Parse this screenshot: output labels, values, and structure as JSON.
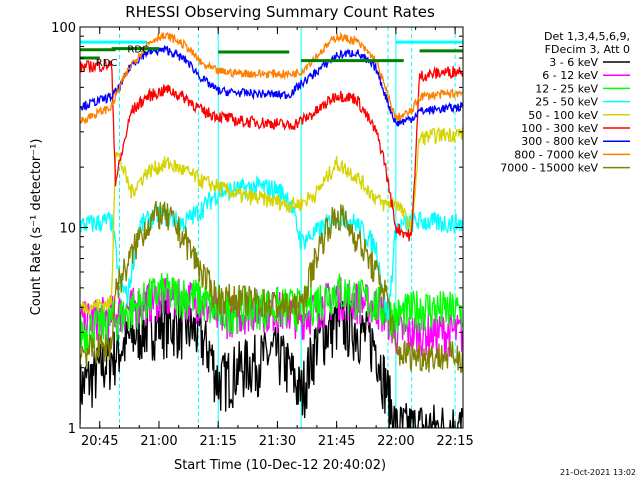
{
  "chart_data": {
    "type": "line",
    "title": "RHESSI Observing Summary Count Rates",
    "xlabel": "Start Time (10-Dec-12 20:40:02)",
    "ylabel": "Count Rate (s⁻¹ detector⁻¹)",
    "yscale": "log",
    "ylim": [
      1,
      100
    ],
    "xlim_minutes": [
      0,
      97
    ],
    "x_ticks": [
      {
        "label": "20:45",
        "t": 5
      },
      {
        "label": "21:00",
        "t": 20
      },
      {
        "label": "21:15",
        "t": 35
      },
      {
        "label": "21:30",
        "t": 50
      },
      {
        "label": "21:45",
        "t": 65
      },
      {
        "label": "22:00",
        "t": 80
      },
      {
        "label": "22:15",
        "t": 95
      }
    ],
    "y_ticks": [
      {
        "label": "1",
        "v": 1
      },
      {
        "label": "10",
        "v": 10
      },
      {
        "label": "100",
        "v": 100
      }
    ],
    "legend_header": [
      "Det 1,3,4,5,6,9,",
      "FDecim 3, Att 0"
    ],
    "legend_position": "right",
    "timestamp": "21-Oct-2021 13:02",
    "annotations": [
      {
        "text": "RDC",
        "t": 12,
        "v": 78
      },
      {
        "text": "RDC",
        "t": 4,
        "v": 67
      }
    ],
    "series": [
      {
        "name": "3 - 6 keV",
        "color": "#000000",
        "points": [
          [
            0,
            1.6
          ],
          [
            10,
            2.5
          ],
          [
            15,
            3.1
          ],
          [
            20,
            3.4
          ],
          [
            25,
            3.3
          ],
          [
            30,
            3.0
          ],
          [
            33,
            2.4
          ],
          [
            35,
            1.7
          ],
          [
            40,
            2.0
          ],
          [
            45,
            2.2
          ],
          [
            50,
            2.4
          ],
          [
            53,
            2.0
          ],
          [
            56,
            1.5
          ],
          [
            60,
            2.8
          ],
          [
            65,
            3.4
          ],
          [
            70,
            3.2
          ],
          [
            75,
            2.6
          ],
          [
            78,
            1.5
          ],
          [
            80,
            1.0
          ],
          [
            97,
            1.0
          ]
        ]
      },
      {
        "name": "6 - 12 keV",
        "color": "#ff00ff",
        "points": [
          [
            0,
            3.4
          ],
          [
            10,
            3.8
          ],
          [
            20,
            4.5
          ],
          [
            30,
            4.4
          ],
          [
            35,
            3.6
          ],
          [
            45,
            4.0
          ],
          [
            53,
            3.8
          ],
          [
            56,
            3.6
          ],
          [
            65,
            4.6
          ],
          [
            75,
            4.1
          ],
          [
            78,
            3.6
          ],
          [
            80,
            3.0
          ],
          [
            97,
            3.0
          ]
        ]
      },
      {
        "name": "12 - 25 keV",
        "color": "#00ff00",
        "points": [
          [
            0,
            3.0
          ],
          [
            10,
            3.6
          ],
          [
            20,
            4.8
          ],
          [
            30,
            4.5
          ],
          [
            35,
            3.8
          ],
          [
            45,
            4.1
          ],
          [
            56,
            4.0
          ],
          [
            65,
            4.9
          ],
          [
            75,
            4.2
          ],
          [
            80,
            3.6
          ],
          [
            86,
            4.0
          ],
          [
            97,
            3.8
          ]
        ]
      },
      {
        "name": "25 - 50 keV",
        "color": "#00ffff",
        "points": [
          [
            0,
            10.3
          ],
          [
            5,
            10.6
          ],
          [
            8,
            10.8
          ],
          [
            10,
            5.5
          ],
          [
            12,
            4.5
          ],
          [
            15,
            10.2
          ],
          [
            20,
            11.8
          ],
          [
            26,
            10.5
          ],
          [
            30,
            12.0
          ],
          [
            35,
            15.0
          ],
          [
            45,
            16.0
          ],
          [
            50,
            15.5
          ],
          [
            53,
            14.0
          ],
          [
            56,
            8.5
          ],
          [
            60,
            9.5
          ],
          [
            65,
            11.5
          ],
          [
            70,
            10.5
          ],
          [
            75,
            8.0
          ],
          [
            78,
            3.5
          ],
          [
            80,
            10.0
          ],
          [
            85,
            10.8
          ],
          [
            90,
            10.6
          ],
          [
            97,
            10.5
          ]
        ]
      },
      {
        "name": "50 - 100 keV",
        "color": "#d4d400",
        "points": [
          [
            0,
            4.0
          ],
          [
            8,
            4.2
          ],
          [
            9,
            25.0
          ],
          [
            13,
            15.0
          ],
          [
            17,
            19.0
          ],
          [
            22,
            21.0
          ],
          [
            27,
            19.0
          ],
          [
            31,
            17.0
          ],
          [
            35,
            16.0
          ],
          [
            40,
            14.5
          ],
          [
            45,
            14.0
          ],
          [
            50,
            13.5
          ],
          [
            53,
            13.0
          ],
          [
            56,
            13.2
          ],
          [
            60,
            15.0
          ],
          [
            65,
            21.0
          ],
          [
            70,
            18.0
          ],
          [
            75,
            14.0
          ],
          [
            77,
            13.0
          ],
          [
            80,
            13.5
          ],
          [
            84,
            10.0
          ],
          [
            86,
            28.0
          ],
          [
            91,
            29.0
          ],
          [
            97,
            29.5
          ]
        ]
      },
      {
        "name": "100 - 300 keV",
        "color": "#ff0000",
        "points": [
          [
            0,
            63.0
          ],
          [
            8,
            65.0
          ],
          [
            9,
            17.0
          ],
          [
            13,
            38.0
          ],
          [
            17,
            45.0
          ],
          [
            22,
            49.0
          ],
          [
            27,
            44.0
          ],
          [
            31,
            38.0
          ],
          [
            35,
            36.0
          ],
          [
            40,
            34.0
          ],
          [
            45,
            33.5
          ],
          [
            50,
            33.0
          ],
          [
            53,
            32.0
          ],
          [
            56,
            34.0
          ],
          [
            60,
            38.0
          ],
          [
            65,
            46.0
          ],
          [
            70,
            44.0
          ],
          [
            75,
            30.0
          ],
          [
            77,
            22.0
          ],
          [
            80,
            10.0
          ],
          [
            84,
            9.0
          ],
          [
            86,
            57.0
          ],
          [
            91,
            59.0
          ],
          [
            97,
            61.0
          ]
        ]
      },
      {
        "name": "300 - 800 keV",
        "color": "#0000ff",
        "points": [
          [
            0,
            40.0
          ],
          [
            8,
            45.0
          ],
          [
            10,
            50.0
          ],
          [
            13,
            65.0
          ],
          [
            17,
            75.0
          ],
          [
            22,
            77.0
          ],
          [
            27,
            68.0
          ],
          [
            31,
            55.0
          ],
          [
            35,
            48.0
          ],
          [
            40,
            47.0
          ],
          [
            45,
            46.5
          ],
          [
            50,
            46.0
          ],
          [
            53,
            46.0
          ],
          [
            56,
            52.0
          ],
          [
            60,
            60.0
          ],
          [
            65,
            72.0
          ],
          [
            70,
            75.0
          ],
          [
            75,
            62.0
          ],
          [
            78,
            42.0
          ],
          [
            80,
            33.0
          ],
          [
            84,
            35.0
          ],
          [
            86,
            38.0
          ],
          [
            91,
            39.0
          ],
          [
            97,
            40.0
          ]
        ]
      },
      {
        "name": "800 - 7000 keV",
        "color": "#ff8000",
        "points": [
          [
            0,
            34.0
          ],
          [
            8,
            40.0
          ],
          [
            10,
            50.0
          ],
          [
            13,
            65.0
          ],
          [
            17,
            82.0
          ],
          [
            20,
            90.0
          ],
          [
            23,
            89.0
          ],
          [
            27,
            80.0
          ],
          [
            31,
            65.0
          ],
          [
            35,
            60.0
          ],
          [
            40,
            59.0
          ],
          [
            45,
            58.5
          ],
          [
            50,
            58.5
          ],
          [
            53,
            58.0
          ],
          [
            56,
            60.0
          ],
          [
            60,
            72.0
          ],
          [
            65,
            90.0
          ],
          [
            70,
            85.0
          ],
          [
            75,
            68.0
          ],
          [
            78,
            45.0
          ],
          [
            80,
            35.0
          ],
          [
            84,
            38.0
          ],
          [
            86,
            45.0
          ],
          [
            91,
            46.0
          ],
          [
            97,
            47.0
          ]
        ]
      },
      {
        "name": "7000 - 15000 keV",
        "color": "#808000",
        "points": [
          [
            0,
            2.4
          ],
          [
            8,
            2.6
          ],
          [
            9,
            5.0
          ],
          [
            12,
            6.5
          ],
          [
            15,
            9.0
          ],
          [
            18,
            11.0
          ],
          [
            20,
            11.8
          ],
          [
            23,
            11.0
          ],
          [
            27,
            8.5
          ],
          [
            30,
            6.5
          ],
          [
            33,
            5.0
          ],
          [
            35,
            4.5
          ],
          [
            45,
            4.3
          ],
          [
            53,
            4.0
          ],
          [
            56,
            4.0
          ],
          [
            60,
            7.5
          ],
          [
            63,
            10.5
          ],
          [
            66,
            11.5
          ],
          [
            70,
            9.0
          ],
          [
            74,
            6.5
          ],
          [
            78,
            4.5
          ],
          [
            80,
            2.4
          ],
          [
            86,
            2.3
          ],
          [
            97,
            2.3
          ]
        ]
      }
    ],
    "flag_segments": [
      {
        "color": "#008000",
        "v": 77,
        "t0": 0,
        "t1": 9
      },
      {
        "color": "#008000",
        "v": 70,
        "t0": 0,
        "t1": 5
      },
      {
        "color": "#008000",
        "v": 78,
        "t0": 8,
        "t1": 20
      },
      {
        "color": "#008000",
        "v": 75,
        "t0": 35,
        "t1": 53
      },
      {
        "color": "#008000",
        "v": 68,
        "t0": 56,
        "t1": 82
      },
      {
        "color": "#008000",
        "v": 76,
        "t0": 86,
        "t1": 97
      }
    ],
    "top_bars": [
      {
        "color": "#00ffff",
        "v": 84,
        "t0": 0,
        "t1": 17
      },
      {
        "color": "#00ffff",
        "v": 84,
        "t0": 80,
        "t1": 97
      }
    ],
    "vertical_markers": [
      {
        "color": "#00ffff",
        "style": "dashed",
        "t": 10
      },
      {
        "color": "#00ffff",
        "style": "dashed",
        "t": 30
      },
      {
        "color": "#00ffff",
        "style": "solid",
        "t": 35
      },
      {
        "color": "#00ffff",
        "style": "solid",
        "t": 56
      },
      {
        "color": "#00ffff",
        "style": "dashed",
        "t": 78
      },
      {
        "color": "#00ffff",
        "style": "solid",
        "t": 80
      },
      {
        "color": "#00ffff",
        "style": "dashed",
        "t": 84
      },
      {
        "color": "#00ffff",
        "style": "dashed",
        "t": 95
      }
    ],
    "grid": false
  }
}
